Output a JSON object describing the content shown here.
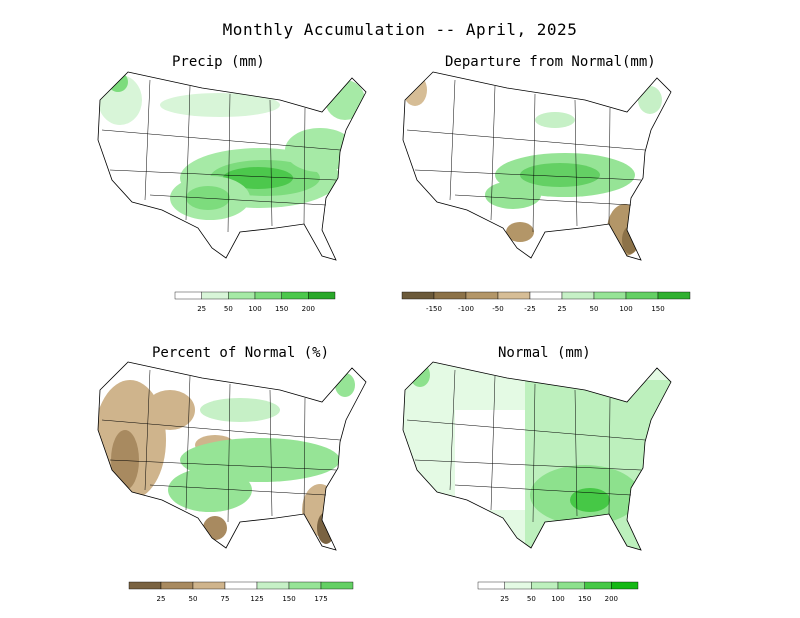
{
  "title": "Monthly Accumulation -- April, 2025",
  "panels": {
    "precip": {
      "title": "Precip (mm)",
      "legend": {
        "labels": [
          "25",
          "50",
          "100",
          "150",
          "200"
        ],
        "colors": [
          "#ffffff",
          "#d8f5d8",
          "#a6eaa6",
          "#7ddc7d",
          "#4cc84c",
          "#2aa82a"
        ]
      }
    },
    "departure": {
      "title": "Departure from Normal(mm)",
      "legend": {
        "labels": [
          "-150",
          "-100",
          "-50",
          "-25",
          "25",
          "50",
          "100",
          "150"
        ],
        "colors": [
          "#6b5a3a",
          "#8c7248",
          "#b39668",
          "#d6bd96",
          "#ffffff",
          "#c6f0c6",
          "#96e496",
          "#64d064",
          "#30b030"
        ]
      }
    },
    "percent": {
      "title": "Percent of Normal (%)",
      "legend": {
        "labels": [
          "25",
          "50",
          "75",
          "125",
          "150",
          "175"
        ],
        "colors": [
          "#7a6342",
          "#a88a60",
          "#cfb48c",
          "#ffffff",
          "#c6f0c6",
          "#96e496",
          "#64d064"
        ]
      }
    },
    "normal": {
      "title": "Normal (mm)",
      "legend": {
        "labels": [
          "25",
          "50",
          "100",
          "150",
          "200"
        ],
        "colors": [
          "#ffffff",
          "#e4fae4",
          "#bdf0bd",
          "#8de18d",
          "#46c846",
          "#14b814"
        ]
      }
    }
  }
}
